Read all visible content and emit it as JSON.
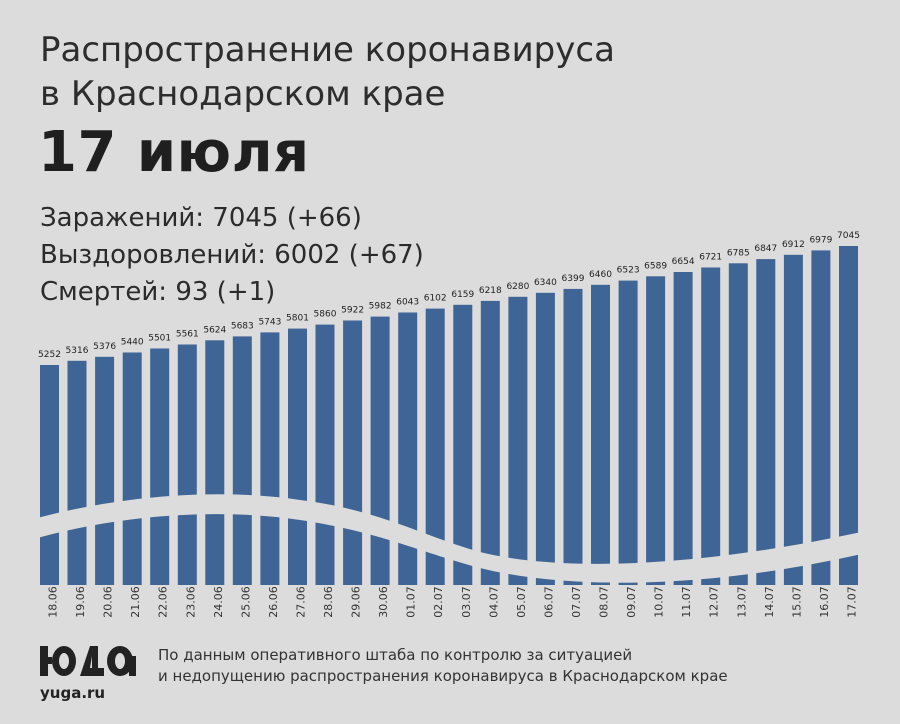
{
  "header": {
    "title_line1": "Распространение коронавируса",
    "title_line2": "в Краснодарском крае",
    "date": "17 июля"
  },
  "stats": {
    "infections": "Заражений: 7045 (+66)",
    "recoveries": "Выздоровлений: 6002 (+67)",
    "deaths": "Смертей: 93 (+1)"
  },
  "footer": {
    "site": "yuga.ru",
    "source_line1": "По данным оперативного штаба по контролю за ситуацией",
    "source_line2": "и недопущению распространения коронавируса в Краснодарском крае"
  },
  "colors": {
    "bar": "#3f6596",
    "background": "#dcdcdc"
  },
  "chart_data": {
    "type": "bar",
    "categories": [
      "18.06",
      "19.06",
      "20.06",
      "21.06",
      "22.06",
      "23.06",
      "24.06",
      "25.06",
      "26.06",
      "27.06",
      "28.06",
      "29.06",
      "30.06",
      "01.07",
      "02.07",
      "03.07",
      "04.07",
      "05.07",
      "06.07",
      "07.07",
      "08.07",
      "09.07",
      "10.07",
      "11.07",
      "12.07",
      "13.07",
      "14.07",
      "15.07",
      "16.07",
      "17.07"
    ],
    "values": [
      5252,
      5316,
      5376,
      5440,
      5501,
      5561,
      5624,
      5683,
      5743,
      5801,
      5860,
      5922,
      5982,
      6043,
      6102,
      6159,
      6218,
      6280,
      6340,
      6399,
      6460,
      6523,
      6589,
      6654,
      6721,
      6785,
      6847,
      6912,
      6979,
      7045
    ],
    "title": "Распространение коронавируса в Краснодарском крае",
    "xlabel": "",
    "ylabel": "",
    "grid": false,
    "data_labels": true
  }
}
